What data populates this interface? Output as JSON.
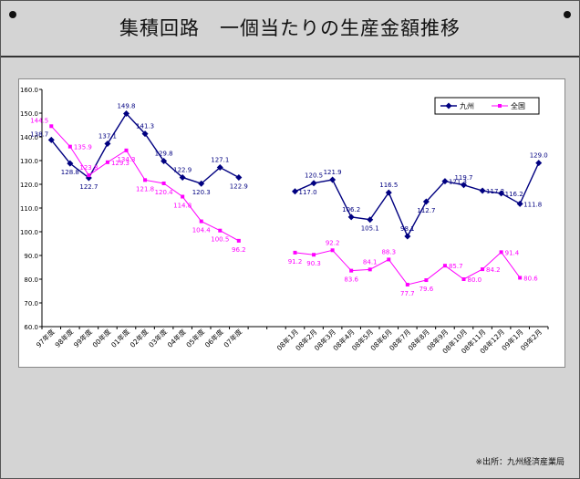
{
  "title": "集積回路　一個当たりの生産金額推移",
  "source": "※出所：九州経済産業局",
  "colors": {
    "kyushu": "#000080",
    "national": "#ff00ff"
  },
  "chart_data": {
    "type": "line",
    "title": "集積回路　一個当たりの生産金額推移",
    "xlabel": "",
    "ylabel": "",
    "ylim": [
      60,
      160
    ],
    "yticks": [
      "60.0",
      "70.0",
      "80.0",
      "90.0",
      "100.0",
      "110.0",
      "120.0",
      "130.0",
      "140.0",
      "150.0",
      "160.0"
    ],
    "grid": false,
    "legend_position": "top-right",
    "categories": [
      "97年度",
      "98年度",
      "99年度",
      "00年度",
      "01年度",
      "02年度",
      "03年度",
      "04年度",
      "05年度",
      "06年度",
      "07年度",
      "",
      "",
      "08年1月",
      "08年2月",
      "08年3月",
      "08年4月",
      "08年5月",
      "08年6月",
      "08年7月",
      "08年8月",
      "08年9月",
      "08年10月",
      "08年11月",
      "08年12月",
      "09年1月",
      "09年2月"
    ],
    "series": [
      {
        "name": "九州",
        "marker": "diamond",
        "values": [
          138.7,
          128.8,
          122.7,
          137.1,
          149.8,
          141.3,
          129.8,
          122.9,
          120.3,
          127.1,
          122.9,
          null,
          null,
          117.0,
          120.5,
          121.9,
          106.2,
          105.1,
          116.5,
          98.1,
          112.7,
          121.3,
          119.7,
          117.3,
          116.2,
          111.8,
          129.0
        ],
        "labels": [
          "138.7",
          "128.8",
          "122.7",
          "137.1",
          "149.8",
          "141.3",
          "129.8",
          "122.9",
          "120.3",
          "127.1",
          "122.9",
          "",
          "",
          "117.0",
          "120.5",
          "121.9",
          "106.2",
          "105.1",
          "116.5",
          "98.1",
          "112.7",
          "121.3",
          "119.7",
          "117.3",
          "116.2",
          "111.8",
          "129.0"
        ]
      },
      {
        "name": "全国",
        "marker": "square",
        "values": [
          144.5,
          135.9,
          123.8,
          129.3,
          134.3,
          121.8,
          120.4,
          114.8,
          104.4,
          100.5,
          96.2,
          null,
          null,
          91.2,
          90.3,
          92.2,
          83.6,
          84.1,
          88.3,
          77.7,
          79.6,
          85.7,
          80.0,
          84.2,
          91.4,
          80.6,
          null
        ],
        "labels": [
          "144.5",
          "135.9",
          "123.8",
          "129.3",
          "134.3",
          "121.8",
          "120.4",
          "114.8",
          "104.4",
          "100.5",
          "96.2",
          "",
          "",
          "91.2",
          "90.3",
          "92.2",
          "83.6",
          "84.1",
          "88.3",
          "77.7",
          "79.6",
          "85.7",
          "80.0",
          "84.2",
          "91.4",
          "80.6",
          ""
        ]
      }
    ]
  }
}
